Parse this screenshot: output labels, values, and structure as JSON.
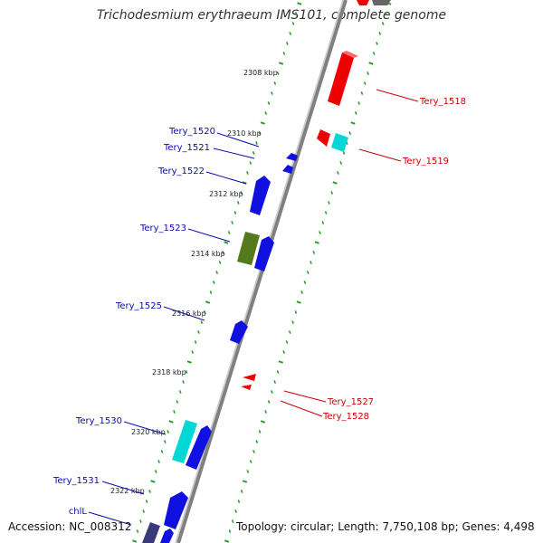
{
  "title": "Trichodesmium erythraeum IMS101, complete genome",
  "footer": {
    "accession": "Accession: NC_008312",
    "summary": "Topology: circular; Length: 7,750,108 bp; Genes: 4,498"
  },
  "scale_labels": [
    "2308 kbp",
    "2310 kbp",
    "2312 kbp",
    "2314 kbp",
    "2316 kbp",
    "2318 kbp",
    "2320 kbp",
    "2322 kbp"
  ],
  "gene_labels": {
    "left": [
      "Tery_1520",
      "Tery_1521",
      "Tery_1522",
      "Tery_1523",
      "Tery_1525",
      "Tery_1530",
      "Tery_1531",
      "chlL"
    ],
    "right": [
      "Tery_1518",
      "Tery_1519",
      "Tery_1527",
      "Tery_1528"
    ]
  },
  "colors": {
    "forward_label": "#0b0bb0",
    "reverse_label": "#cc0000",
    "forward_gene": "#1010e0",
    "reverse_gene": "#ee0000",
    "cyan_gene": "#00d8d8",
    "olive_gene": "#557a1e",
    "slate_gene": "#3a3a7a",
    "scale_dots": "#2a9d2a",
    "backbone": "#808080"
  }
}
